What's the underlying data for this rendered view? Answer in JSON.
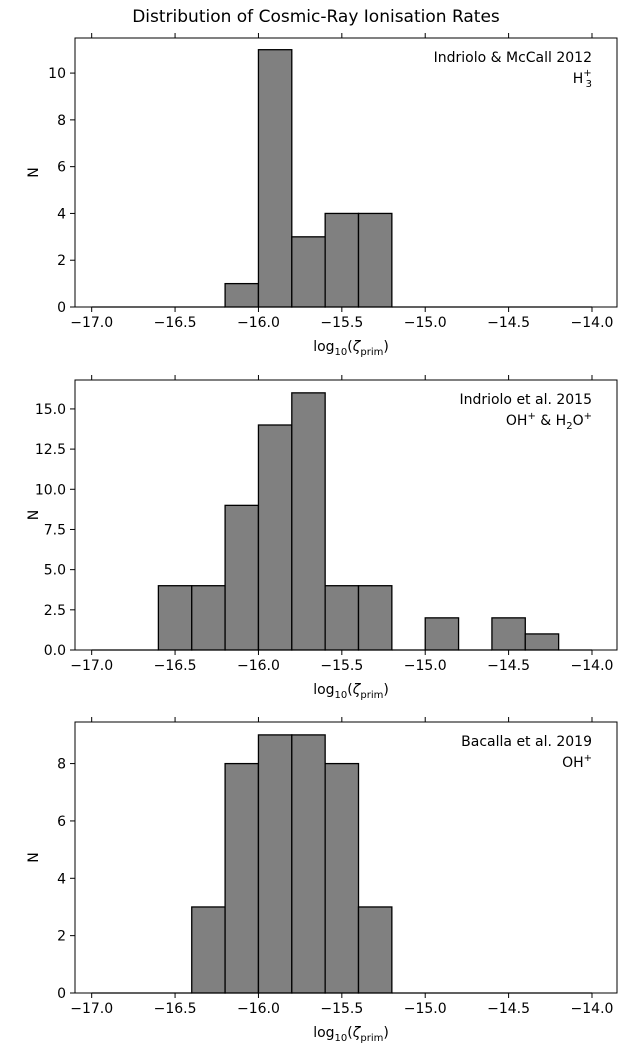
{
  "figure": {
    "title": "Distribution of Cosmic-Ray Ionisation Rates"
  },
  "colors": {
    "bar_fill": "#808080",
    "bar_edge": "#000000",
    "background": "#ffffff"
  },
  "chart_data": [
    {
      "type": "bar",
      "histogram": true,
      "annotation": [
        "Indriolo & McCall 2012",
        "H3+"
      ],
      "annotation_position": "top-right",
      "xlabel": "log10(ζprim)",
      "ylabel": "N",
      "xlim": [
        -17.1,
        -13.85
      ],
      "ylim": [
        0,
        11.5
      ],
      "x_ticks": [
        -17.0,
        -16.5,
        -16.0,
        -15.5,
        -15.0,
        -14.5,
        -14.0
      ],
      "x_tick_labels": [
        "−17.0",
        "−16.5",
        "−16.0",
        "−15.5",
        "−15.0",
        "−14.5",
        "−14.0"
      ],
      "y_ticks": [
        0,
        2,
        4,
        6,
        8,
        10
      ],
      "y_tick_labels": [
        "0",
        "2",
        "4",
        "6",
        "8",
        "10"
      ],
      "bin_edges": [
        -17.0,
        -16.8,
        -16.6,
        -16.4,
        -16.2,
        -16.0,
        -15.8,
        -15.6,
        -15.4,
        -15.2,
        -15.0,
        -14.8,
        -14.6,
        -14.4,
        -14.2,
        -14.0
      ],
      "values": [
        0,
        0,
        0,
        0,
        1,
        11,
        3,
        4,
        4,
        0,
        0,
        0,
        0,
        0,
        0
      ],
      "grid": false
    },
    {
      "type": "bar",
      "histogram": true,
      "annotation": [
        "Indriolo et al. 2015",
        "OH+ & H2O+"
      ],
      "annotation_position": "top-right",
      "xlabel": "log10(ζprim)",
      "ylabel": "N",
      "xlim": [
        -17.1,
        -13.85
      ],
      "ylim": [
        0,
        16.8
      ],
      "x_ticks": [
        -17.0,
        -16.5,
        -16.0,
        -15.5,
        -15.0,
        -14.5,
        -14.0
      ],
      "x_tick_labels": [
        "−17.0",
        "−16.5",
        "−16.0",
        "−15.5",
        "−15.0",
        "−14.5",
        "−14.0"
      ],
      "y_ticks": [
        0,
        2.5,
        5,
        7.5,
        10,
        12.5,
        15
      ],
      "y_tick_labels": [
        "0.0",
        "2.5",
        "5.0",
        "7.5",
        "10.0",
        "12.5",
        "15.0"
      ],
      "bin_edges": [
        -17.0,
        -16.8,
        -16.6,
        -16.4,
        -16.2,
        -16.0,
        -15.8,
        -15.6,
        -15.4,
        -15.2,
        -15.0,
        -14.8,
        -14.6,
        -14.4,
        -14.2,
        -14.0
      ],
      "values": [
        0,
        0,
        4,
        4,
        9,
        14,
        16,
        4,
        4,
        0,
        2,
        0,
        2,
        1,
        0
      ],
      "grid": false
    },
    {
      "type": "bar",
      "histogram": true,
      "annotation": [
        "Bacalla et al. 2019",
        "OH+"
      ],
      "annotation_position": "top-right",
      "xlabel": "log10(ζprim)",
      "ylabel": "N",
      "xlim": [
        -17.1,
        -13.85
      ],
      "ylim": [
        0,
        9.45
      ],
      "x_ticks": [
        -17.0,
        -16.5,
        -16.0,
        -15.5,
        -15.0,
        -14.5,
        -14.0
      ],
      "x_tick_labels": [
        "−17.0",
        "−16.5",
        "−16.0",
        "−15.5",
        "−15.0",
        "−14.5",
        "−14.0"
      ],
      "y_ticks": [
        0,
        2,
        4,
        6,
        8
      ],
      "y_tick_labels": [
        "0",
        "2",
        "4",
        "6",
        "8"
      ],
      "bin_edges": [
        -17.0,
        -16.8,
        -16.6,
        -16.4,
        -16.2,
        -16.0,
        -15.8,
        -15.6,
        -15.4,
        -15.2,
        -15.0,
        -14.8,
        -14.6,
        -14.4,
        -14.2,
        -14.0
      ],
      "values": [
        0,
        0,
        0,
        3,
        8,
        9,
        9,
        8,
        3,
        0,
        0,
        0,
        0,
        0,
        0
      ],
      "grid": false
    }
  ]
}
